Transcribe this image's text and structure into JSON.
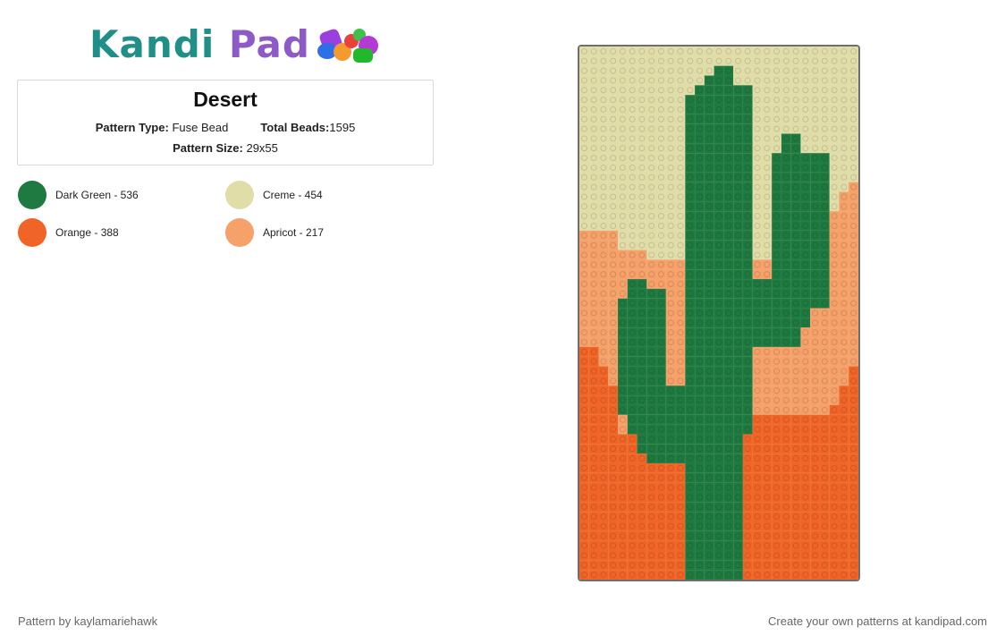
{
  "logo": {
    "part1": "Kandi",
    "part2": "Pad"
  },
  "pattern": {
    "title": "Desert",
    "type_label": "Pattern Type:",
    "type_value": "Fuse Bead",
    "total_label": "Total Beads:",
    "total_value": "1595",
    "size_label": "Pattern Size:",
    "size_value": "29x55"
  },
  "palette": [
    {
      "name": "Dark Green - 536",
      "color": "#1e7a40"
    },
    {
      "name": "Creme - 454",
      "color": "#e1dda9"
    },
    {
      "name": "Orange - 388",
      "color": "#f06527"
    },
    {
      "name": "Apricot - 217",
      "color": "#f6a06a"
    }
  ],
  "footer": {
    "left": "Pattern by kaylamariehawk",
    "right": "Create your own patterns at kandipad.com"
  }
}
